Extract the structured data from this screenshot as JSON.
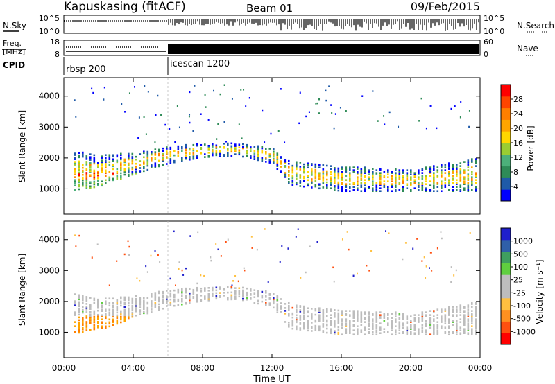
{
  "header": {
    "title": "Kapuskasing (fitACF)",
    "beam": "Beam 01",
    "date": "09/Feb/2015"
  },
  "top_panels": {
    "nsky": {
      "label": "N.Sky",
      "ticks": [
        "10^5",
        "10^0"
      ]
    },
    "nsearch": {
      "label": "N.Search",
      "ticks": [
        "10^5",
        "10^0"
      ]
    },
    "freq": {
      "label_line1": "Freq.",
      "label_line2": "[MHz]",
      "ticks": [
        "18",
        "8"
      ]
    },
    "nave": {
      "label": "Nave",
      "ticks": [
        "60",
        "0"
      ]
    },
    "cpid": {
      "label": "CPID",
      "modes": [
        "rbsp 200",
        "icescan 1200"
      ]
    }
  },
  "colors": {
    "power_scale": [
      "#0000ff",
      "#1f5aa8",
      "#2e8b57",
      "#4cb07a",
      "#9acd32",
      "#ffd700",
      "#ffa500",
      "#ff7f00",
      "#ff4500",
      "#ff0000"
    ],
    "velocity_scale": [
      "#1f1fcc",
      "#2f5fa8",
      "#3f9f5f",
      "#5fcf3f",
      "#bdbdbd",
      "#bdbdbd",
      "#ffc040",
      "#ff9020",
      "#ff5010",
      "#ff0000"
    ],
    "ground_scatter": "#bdbdbd"
  },
  "chart_data": [
    {
      "type": "heatmap",
      "title": "",
      "xlabel": "Time UT",
      "ylabel": "Slant Range [km]",
      "xticks": [
        "00:00",
        "04:00",
        "08:00",
        "12:00",
        "16:00",
        "20:00",
        "00:00"
      ],
      "yticks": [
        "1000",
        "2000",
        "3000",
        "4000"
      ],
      "xlim_hours": [
        0,
        24
      ],
      "ylim_km": [
        180,
        4600
      ],
      "colorbar": {
        "label": "Power [dB]",
        "ticks": [
          "4",
          "8",
          "12",
          "16",
          "20",
          "24",
          "28"
        ],
        "range": [
          0,
          30
        ]
      },
      "scatter_band_km_by_hour": [
        {
          "hour": 0,
          "lower": 900,
          "upper": 2300
        },
        {
          "hour": 2,
          "lower": 1050,
          "upper": 2050
        },
        {
          "hour": 4,
          "lower": 1450,
          "upper": 2150
        },
        {
          "hour": 6,
          "lower": 1800,
          "upper": 2350
        },
        {
          "hour": 8,
          "lower": 2000,
          "upper": 2450
        },
        {
          "hour": 10,
          "lower": 2050,
          "upper": 2450
        },
        {
          "hour": 12,
          "lower": 1800,
          "upper": 2300
        },
        {
          "hour": 13,
          "lower": 1100,
          "upper": 1900
        },
        {
          "hour": 16,
          "lower": 900,
          "upper": 1700
        },
        {
          "hour": 20,
          "lower": 900,
          "upper": 1600
        },
        {
          "hour": 24,
          "lower": 900,
          "upper": 2000
        }
      ]
    },
    {
      "type": "heatmap",
      "title": "",
      "xlabel": "Time UT",
      "ylabel": "Slant Range [km]",
      "xticks": [
        "00:00",
        "04:00",
        "08:00",
        "12:00",
        "16:00",
        "20:00",
        "00:00"
      ],
      "yticks": [
        "1000",
        "2000",
        "3000",
        "4000"
      ],
      "xlim_hours": [
        0,
        24
      ],
      "ylim_km": [
        180,
        4600
      ],
      "colorbar": {
        "label": "Velocity [m s⁻¹]",
        "ticks": [
          "1000",
          "500",
          "100",
          "25",
          "-25",
          "-100",
          "-500",
          "-1000"
        ],
        "range": [
          -1000,
          1000
        ]
      },
      "ground_scatter_color": "gray"
    }
  ]
}
